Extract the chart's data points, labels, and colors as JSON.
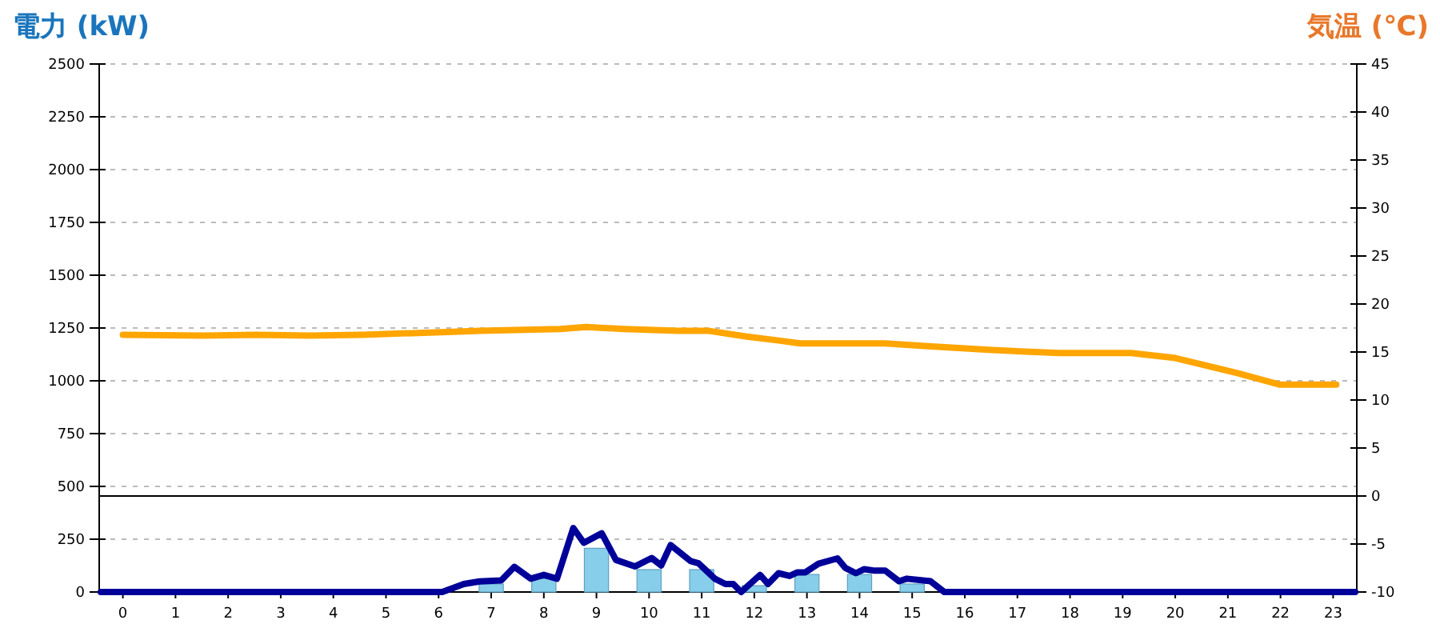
{
  "chart_data": {
    "type": "bar",
    "ylabel": "電力 (kW)",
    "y2label": "気温 (℃)",
    "x": [
      0,
      1,
      2,
      3,
      4,
      5,
      6,
      7,
      8,
      9,
      10,
      11,
      12,
      13,
      14,
      15,
      16,
      17,
      18,
      19,
      20,
      21,
      22,
      23
    ],
    "xlim": [
      -0.45,
      23.45
    ],
    "xticks": [
      0,
      1,
      2,
      3,
      4,
      5,
      6,
      7,
      8,
      9,
      10,
      11,
      12,
      13,
      14,
      15,
      16,
      17,
      18,
      19,
      20,
      21,
      22,
      23
    ],
    "ylim": [
      0,
      2500
    ],
    "yticks": [
      0,
      250,
      500,
      750,
      1000,
      1250,
      1500,
      1750,
      2000,
      2250,
      2500
    ],
    "y2lim": [
      -10,
      45
    ],
    "y2ticks": [
      -10,
      -5,
      0,
      5,
      10,
      15,
      20,
      25,
      30,
      35,
      40,
      45
    ],
    "grid": "y",
    "ref_lines": [
      {
        "axis": "y2",
        "value": 0,
        "color": "#000000"
      }
    ],
    "series": [
      {
        "color": "#87ceeb",
        "values": [
          0,
          0,
          0,
          0,
          0,
          0,
          0,
          38,
          63,
          207,
          106,
          106,
          30,
          83,
          83,
          38,
          0,
          0,
          0,
          0,
          0,
          0,
          0,
          0
        ]
      },
      {
        "type": "line",
        "color": "#000099",
        "x": [
          -0.42,
          6.07,
          6.48,
          6.78,
          7.19,
          7.44,
          7.75,
          8.0,
          8.25,
          8.56,
          8.76,
          9.1,
          9.37,
          9.73,
          10.05,
          10.23,
          10.41,
          10.79,
          10.94,
          11.14,
          11.25,
          11.45,
          11.6,
          11.75,
          12.11,
          12.26,
          12.46,
          12.67,
          12.82,
          12.97,
          13.22,
          13.58,
          13.73,
          13.93,
          14.09,
          14.29,
          14.49,
          14.75,
          14.9,
          15.35,
          15.61,
          23.42
        ],
        "values": [
          0,
          0,
          38,
          50,
          55,
          119,
          63,
          81,
          63,
          303,
          233,
          278,
          152,
          121,
          161,
          126,
          222,
          146,
          136,
          89,
          63,
          38,
          38,
          0,
          81,
          38,
          89,
          76,
          93,
          93,
          134,
          159,
          114,
          89,
          108,
          101,
          101,
          51,
          63,
          51,
          0,
          0
        ]
      },
      {
        "type": "line",
        "axis": "y2",
        "color": "#ffa500",
        "x": [
          0,
          1.51,
          2.53,
          3.54,
          4.55,
          6.28,
          6.78,
          8.31,
          8.81,
          9.52,
          10.54,
          11.14,
          11.86,
          12.46,
          12.87,
          14.49,
          15.3,
          16.52,
          17.79,
          19.16,
          19.97,
          21.18,
          21.99,
          23.06
        ],
        "values": [
          16.8,
          16.7,
          16.8,
          16.7,
          16.8,
          17.1,
          17.2,
          17.4,
          17.6,
          17.4,
          17.2,
          17.2,
          16.6,
          16.2,
          15.9,
          15.9,
          15.6,
          15.2,
          14.9,
          14.9,
          14.4,
          12.8,
          11.6,
          11.6
        ]
      }
    ]
  }
}
